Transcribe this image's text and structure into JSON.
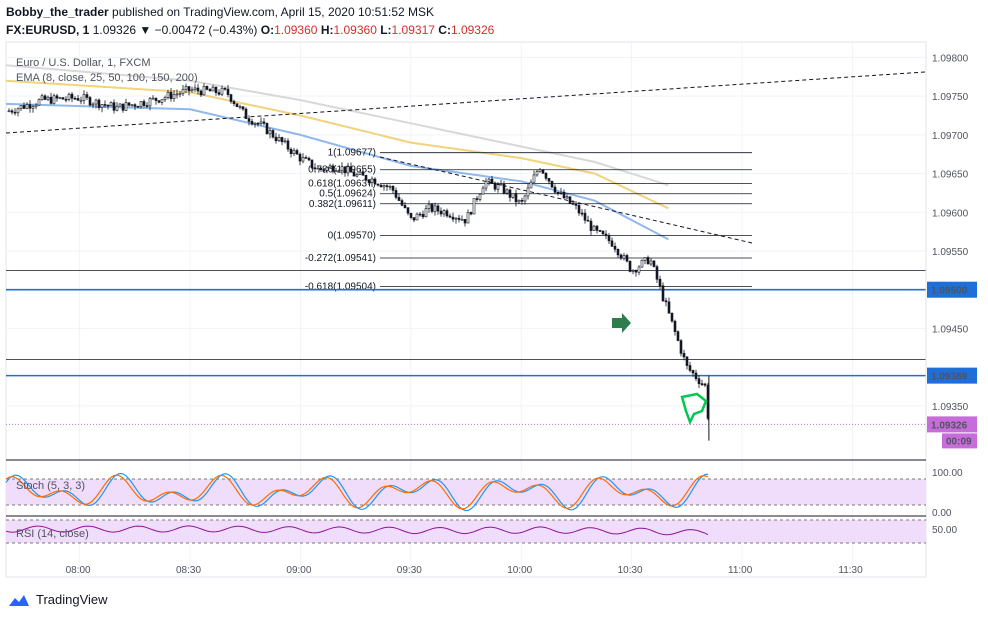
{
  "header": {
    "author": "Bobby_the_trader",
    "published": "published on TradingView.com, April 15, 2020 10:51:52 MSK",
    "symbol": "FX:EURUSD, 1",
    "last": "1.09326",
    "change": "▼ −0.00472 (−0.43%)",
    "o_label": "O:",
    "o": "1.09360",
    "h_label": "H:",
    "h": "1.09360",
    "l_label": "L:",
    "l": "1.09317",
    "c_label": "C:",
    "c": "1.09326"
  },
  "legend": {
    "title": "Euro / U.S. Dollar, 1, FXCM",
    "ema": "EMA (8, close, 25, 50, 100, 150, 200)",
    "stoch": "Stoch (5, 3, 3)",
    "rsi": "RSI (14, close)"
  },
  "footer": {
    "brand": "TradingView"
  },
  "colors": {
    "up": "#131722",
    "down": "#131722",
    "hline": "#1e6fd9",
    "price_badge": "#c66ddb",
    "stoch_k": "#2196f3",
    "stoch_d": "#ff6d00",
    "rsi": "#8e1599",
    "band": "#f0dcfb",
    "ema_blue": "#90b8ec",
    "ema_gold": "#f2d27a",
    "ema_gray": "#d8d8d8",
    "arrow": "#2e7d4f",
    "thumb": "#00c853"
  },
  "chart_data": {
    "type": "candlestick",
    "title": "Euro / U.S. Dollar, 1, FXCM",
    "x_ticks": [
      "08:00",
      "08:30",
      "09:00",
      "09:30",
      "10:00",
      "10:30",
      "11:00",
      "11:30"
    ],
    "y_ticks": [
      "1.09800",
      "1.09750",
      "1.09700",
      "1.09650",
      "1.09600",
      "1.09550",
      "1.09450",
      "1.09350"
    ],
    "ylim": [
      1.0928,
      1.0982
    ],
    "price_badges": [
      "1.09500",
      "1.09389",
      "1.09326"
    ],
    "countdown": "00:09",
    "horizontal_levels": [
      1.095,
      1.09389
    ],
    "fibonacci": [
      {
        "label": "1(1.09677)",
        "value": 1.09677
      },
      {
        "label": "0.786(1.09655)",
        "value": 1.09655
      },
      {
        "label": "0.618(1.09637)",
        "value": 1.09637
      },
      {
        "label": "0.5(1.09624)",
        "value": 1.09624
      },
      {
        "label": "0.382(1.09611)",
        "value": 1.09611
      },
      {
        "label": "0(1.09570)",
        "value": 1.0957
      },
      {
        "label": "-0.272(1.09541)",
        "value": 1.09541
      },
      {
        "label": "-0.618(1.09504)",
        "value": 1.09504
      }
    ],
    "price_path": [
      [
        "07:40",
        1.0973
      ],
      [
        "07:50",
        1.09745
      ],
      [
        "08:00",
        1.09748
      ],
      [
        "08:10",
        1.09735
      ],
      [
        "08:20",
        1.09745
      ],
      [
        "08:30",
        1.09758
      ],
      [
        "08:40",
        1.09755
      ],
      [
        "08:45",
        1.09725
      ],
      [
        "08:50",
        1.0971
      ],
      [
        "08:55",
        1.0969
      ],
      [
        "09:00",
        1.0967
      ],
      [
        "09:05",
        1.09655
      ],
      [
        "09:10",
        1.0966
      ],
      [
        "09:15",
        1.09648
      ],
      [
        "09:20",
        1.09642
      ],
      [
        "09:25",
        1.0963
      ],
      [
        "09:30",
        1.0959
      ],
      [
        "09:35",
        1.09605
      ],
      [
        "09:40",
        1.096
      ],
      [
        "09:45",
        1.0959
      ],
      [
        "09:50",
        1.0964
      ],
      [
        "09:55",
        1.0963
      ],
      [
        "10:00",
        1.0961
      ],
      [
        "10:05",
        1.0966
      ],
      [
        "10:10",
        1.09625
      ],
      [
        "10:15",
        1.09605
      ],
      [
        "10:20",
        1.09575
      ],
      [
        "10:25",
        1.0956
      ],
      [
        "10:30",
        1.09525
      ],
      [
        "10:35",
        1.0954
      ],
      [
        "10:40",
        1.0947
      ],
      [
        "10:45",
        1.094
      ],
      [
        "10:50",
        1.09375
      ],
      [
        "10:51",
        1.09326
      ]
    ],
    "ema_series": [
      {
        "values": [
          [
            "07:40",
            1.0974
          ],
          [
            "08:30",
            1.09733
          ],
          [
            "09:00",
            1.097
          ],
          [
            "09:30",
            1.0966
          ],
          [
            "10:00",
            1.0964
          ],
          [
            "10:20",
            1.09615
          ],
          [
            "10:40",
            1.09565
          ]
        ]
      },
      {
        "values": [
          [
            "07:40",
            1.0977
          ],
          [
            "08:30",
            1.09755
          ],
          [
            "09:00",
            1.09725
          ],
          [
            "09:30",
            1.0969
          ],
          [
            "10:00",
            1.0967
          ],
          [
            "10:20",
            1.0965
          ],
          [
            "10:40",
            1.09605
          ]
        ]
      },
      {
        "values": [
          [
            "07:40",
            1.0979
          ],
          [
            "08:30",
            1.0977
          ],
          [
            "09:00",
            1.09745
          ],
          [
            "09:30",
            1.09715
          ],
          [
            "10:00",
            1.09685
          ],
          [
            "10:20",
            1.09665
          ],
          [
            "10:40",
            1.09635
          ]
        ]
      }
    ],
    "stoch_ylim": [
      0,
      100
    ],
    "stoch_ticks": [
      "100.00",
      "0.00"
    ],
    "rsi_ticks": [
      "50.00"
    ]
  }
}
